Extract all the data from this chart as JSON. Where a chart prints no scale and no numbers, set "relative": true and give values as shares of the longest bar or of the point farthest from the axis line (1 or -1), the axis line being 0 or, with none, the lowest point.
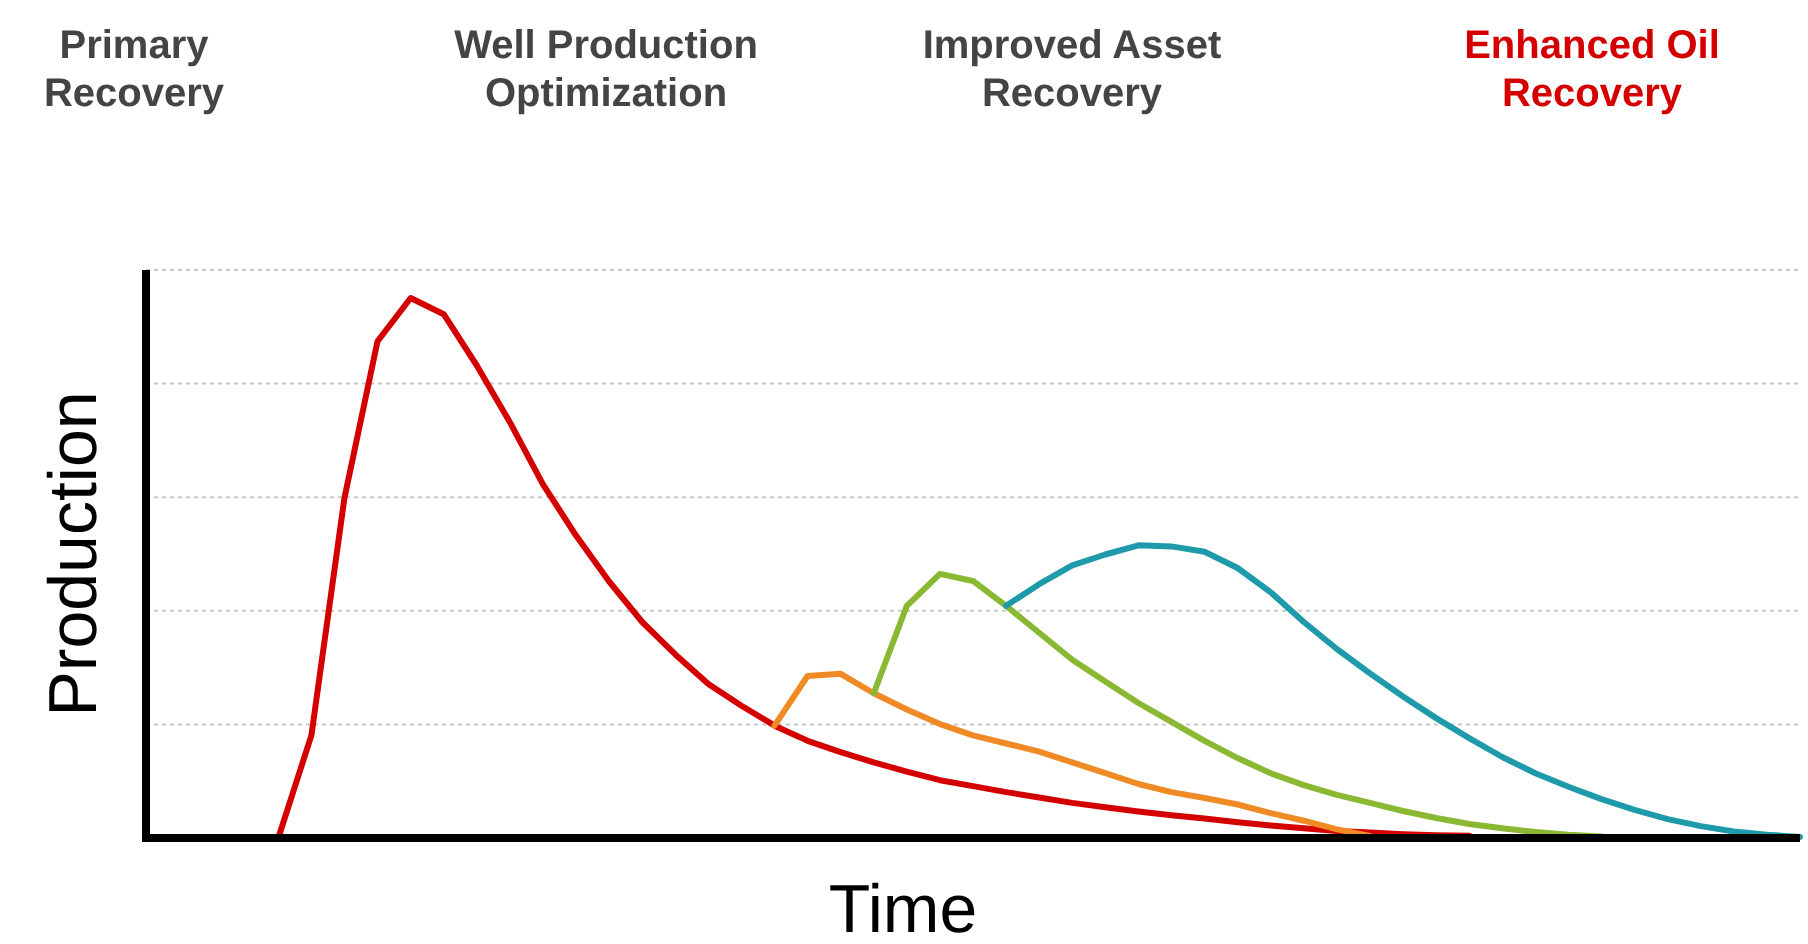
{
  "chart_data": {
    "type": "line",
    "relative": true,
    "xlabel": "Time",
    "ylabel": "Production",
    "grid": true,
    "annotations": [
      "Primary Recovery",
      "Well Production Optimization",
      "Improved Asset Recovery",
      "Enhanced Oil Recovery"
    ],
    "categories": [
      null,
      null,
      null,
      null,
      null,
      null,
      null,
      null,
      null,
      null,
      null,
      null,
      null,
      null,
      null,
      null,
      null,
      null,
      null,
      null,
      null,
      null,
      null,
      null,
      null,
      null,
      null,
      null,
      null,
      null,
      null,
      null,
      null,
      null,
      null,
      null,
      null,
      null,
      null,
      null,
      null,
      null,
      null,
      null,
      null,
      null,
      null,
      null,
      null,
      null,
      null
    ],
    "series": [
      {
        "color": "#d40000",
        "values": [
          null,
          null,
          null,
          null,
          0,
          0.19,
          0.63,
          0.92,
          1,
          0.97,
          0.875,
          0.77,
          0.655,
          0.56,
          0.475,
          0.4,
          0.34,
          0.285,
          0.245,
          0.208,
          0.18,
          0.159,
          0.14,
          0.123,
          0.107,
          0.096,
          0.085,
          0.075,
          0.065,
          0.057,
          0.049,
          0.042,
          0.036,
          0.029,
          0.023,
          0.018,
          0.013,
          0.01,
          0.007,
          0.005,
          0.004,
          null,
          null,
          null,
          null,
          null,
          null,
          null,
          null,
          null,
          null
        ]
      },
      {
        "color": "#f08a24",
        "values": [
          null,
          null,
          null,
          null,
          null,
          null,
          null,
          null,
          null,
          null,
          null,
          null,
          null,
          null,
          null,
          null,
          null,
          null,
          null,
          0.208,
          0.3,
          0.304,
          0.268,
          0.238,
          0.211,
          0.19,
          0.175,
          0.16,
          0.14,
          0.12,
          0.1,
          0.085,
          0.074,
          0.062,
          0.046,
          0.032,
          0.016,
          0.004,
          null,
          null,
          null,
          null,
          null,
          null,
          null,
          null,
          null,
          null,
          null,
          null,
          null
        ]
      },
      {
        "color": "#8ab833",
        "values": [
          null,
          null,
          null,
          null,
          null,
          null,
          null,
          null,
          null,
          null,
          null,
          null,
          null,
          null,
          null,
          null,
          null,
          null,
          null,
          null,
          null,
          null,
          0.268,
          0.43,
          0.489,
          0.476,
          0.43,
          0.38,
          0.33,
          0.29,
          0.25,
          0.215,
          0.18,
          0.148,
          0.12,
          0.098,
          0.08,
          0.065,
          0.05,
          0.037,
          0.026,
          0.018,
          0.011,
          0.006,
          0.003,
          null,
          null,
          null,
          null,
          null,
          null
        ]
      },
      {
        "color": "#1f9aab",
        "values": [
          null,
          null,
          null,
          null,
          null,
          null,
          null,
          null,
          null,
          null,
          null,
          null,
          null,
          null,
          null,
          null,
          null,
          null,
          null,
          null,
          null,
          null,
          null,
          null,
          null,
          null,
          0.43,
          0.47,
          0.505,
          0.525,
          0.542,
          0.54,
          0.53,
          0.5,
          0.455,
          0.4,
          0.35,
          0.305,
          0.262,
          0.222,
          0.185,
          0.15,
          0.12,
          0.095,
          0.072,
          0.052,
          0.035,
          0.022,
          0.012,
          0.006,
          0.002
        ]
      }
    ]
  }
}
